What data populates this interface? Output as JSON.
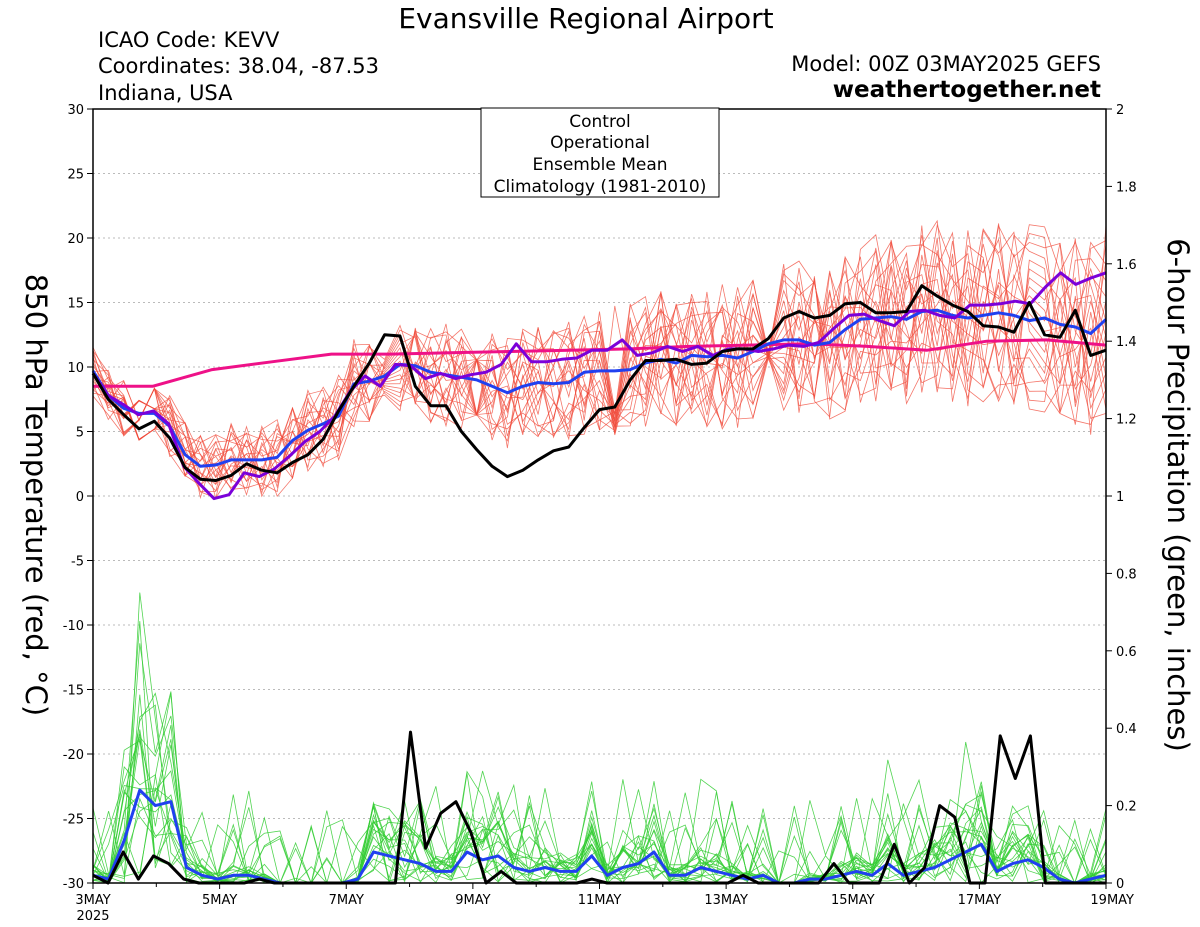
{
  "header": {
    "title": "Evansville Regional Airport",
    "icao": "ICAO Code: KEVV",
    "coords": "Coordinates: 38.04, -87.53",
    "region": "Indiana, USA",
    "model": "Model: 00Z 03MAY2025 GEFS",
    "site": "weathertogether.net"
  },
  "colors": {
    "control": "#000000",
    "operational": "#7b00d9",
    "ensemble_mean": "#2040f0",
    "climatology": "#ee1188",
    "members_temp": "#f04a3a",
    "members_precip": "#33cc33",
    "site": "#0aa0f0"
  },
  "chart_data": {
    "type": "line",
    "ylabel": "850 hPa Temperature (red, °C)",
    "y2label": "6-hour Precipitation (green, inches)",
    "ylim": [
      -30,
      30
    ],
    "y2lim": [
      0,
      2
    ],
    "yticks": [
      "30",
      "25",
      "20",
      "15",
      "10",
      "5",
      "0",
      "-5",
      "-10",
      "-15",
      "-20",
      "-25",
      "-30"
    ],
    "y2ticks": [
      "2",
      "1.8",
      "1.6",
      "1.4",
      "1.2",
      "1",
      "0.8",
      "0.6",
      "0.4",
      "0.2",
      "0"
    ],
    "x_range_days": [
      0,
      16
    ],
    "xticks": [
      {
        "day": 0,
        "label": "3MAY",
        "sub": "2025"
      },
      {
        "day": 2,
        "label": "5MAY"
      },
      {
        "day": 4,
        "label": "7MAY"
      },
      {
        "day": 6,
        "label": "9MAY"
      },
      {
        "day": 8,
        "label": "11MAY"
      },
      {
        "day": 10,
        "label": "13MAY"
      },
      {
        "day": 12,
        "label": "15MAY"
      },
      {
        "day": 14,
        "label": "17MAY"
      },
      {
        "day": 16,
        "label": "19MAY"
      }
    ],
    "legend": {
      "position": "top-center",
      "entries": [
        "Control",
        "Operational",
        "Ensemble Mean",
        "Climatology (1981-2010)"
      ]
    },
    "grid": "horizontal-dotted",
    "series": [
      {
        "key": "control_temp",
        "axis": "left",
        "values": [
          9.5,
          7.5,
          6.3,
          5.2,
          5.8,
          4.5,
          2.2,
          1.3,
          1.2,
          1.6,
          2.5,
          2.0,
          1.8,
          2.6,
          3.2,
          4.4,
          6.6,
          8.5,
          10.3,
          12.5,
          12.4,
          8.5,
          7.0,
          7.0,
          5.0,
          3.6,
          2.3,
          1.5,
          2.0,
          2.8,
          3.5,
          3.8,
          5.3,
          6.7,
          6.9,
          9.0,
          10.5,
          10.5,
          10.6,
          10.2,
          10.3,
          11.2,
          11.4,
          11.4,
          12.2,
          13.8,
          14.3,
          13.8,
          14.0,
          14.9,
          15.0,
          14.2,
          14.2,
          14.3,
          16.3,
          15.5,
          14.8,
          14.3,
          13.2,
          13.1,
          12.7,
          15.0,
          12.5,
          12.3,
          14.4,
          10.9,
          11.3
        ]
      },
      {
        "key": "operational_temp",
        "axis": "left",
        "values": [
          9.5,
          7.8,
          7.1,
          6.3,
          6.6,
          5.6,
          2.3,
          1.0,
          -0.2,
          0.1,
          1.8,
          1.5,
          2.1,
          3.1,
          4.2,
          5.0,
          6.2,
          8.1,
          9.3,
          8.5,
          10.2,
          10.1,
          9.1,
          9.5,
          9.1,
          9.4,
          9.6,
          10.2,
          11.8,
          10.4,
          10.4,
          10.6,
          10.7,
          11.3,
          11.3,
          12.1,
          10.9,
          11.1,
          11.6,
          11.2,
          11.6,
          10.9,
          11.4,
          11.4,
          11.2,
          11.4,
          11.7,
          11.6,
          11.9,
          13.0,
          14.0,
          14.1,
          13.6,
          13.2,
          14.3,
          14.4,
          14.0,
          13.8,
          14.8,
          14.8,
          14.9,
          15.1,
          14.9,
          16.2,
          17.3,
          16.4,
          16.9,
          17.3
        ]
      },
      {
        "key": "ensemble_mean_temp",
        "axis": "left",
        "values": [
          9.7,
          7.8,
          6.8,
          6.4,
          6.4,
          5.4,
          3.2,
          2.3,
          2.4,
          2.8,
          2.8,
          2.8,
          3.0,
          4.3,
          5.1,
          5.6,
          6.2,
          8.7,
          8.9,
          9.3,
          10.2,
          10.1,
          9.6,
          9.4,
          9.2,
          9.0,
          8.5,
          8.0,
          8.5,
          8.8,
          8.7,
          8.8,
          9.6,
          9.7,
          9.7,
          9.8,
          10.3,
          10.6,
          10.3,
          10.9,
          10.8,
          10.9,
          10.7,
          11.2,
          11.8,
          12.1,
          12.1,
          11.7,
          11.9,
          12.9,
          13.7,
          13.8,
          13.9,
          13.7,
          14.3,
          14.4,
          14.0,
          13.8,
          14.0,
          14.2,
          14.0,
          13.6,
          13.8,
          13.3,
          13.1,
          12.6,
          13.7
        ]
      },
      {
        "key": "climatology_temp",
        "axis": "left",
        "values": [
          8.5,
          8.5,
          9.8,
          10.4,
          11.0,
          11.0,
          11.1,
          11.2,
          11.3,
          11.4,
          11.6,
          11.7,
          11.8,
          11.6,
          11.3,
          12.0,
          12.1,
          11.7
        ]
      },
      {
        "key": "control_precip",
        "axis": "right",
        "values": [
          0.02,
          0,
          0.08,
          0.01,
          0.07,
          0.05,
          0.01,
          0,
          0,
          0,
          0,
          0.01,
          0,
          0,
          0,
          0,
          0,
          0,
          0,
          0,
          0.0,
          0.39,
          0.09,
          0.18,
          0.21,
          0.13,
          0,
          0.03,
          0,
          0,
          0,
          0,
          0,
          0.01,
          0,
          0,
          0,
          0,
          0,
          0,
          0,
          0,
          0,
          0.02,
          0,
          0,
          0,
          0,
          0,
          0.05,
          0,
          0,
          0,
          0.1,
          0,
          0.04,
          0.2,
          0.17,
          0,
          0,
          0.38,
          0.27,
          0.38,
          0,
          0,
          0,
          0,
          0
        ]
      },
      {
        "key": "ensemble_mean_precip",
        "axis": "right",
        "values": [
          0.02,
          0.01,
          0.11,
          0.24,
          0.2,
          0.21,
          0.04,
          0.02,
          0.01,
          0.02,
          0.02,
          0.01,
          0,
          0,
          0,
          0,
          0,
          0.01,
          0.08,
          0.07,
          0.06,
          0.05,
          0.03,
          0.03,
          0.08,
          0.06,
          0.07,
          0.04,
          0.03,
          0.04,
          0.03,
          0.03,
          0.07,
          0.02,
          0.04,
          0.05,
          0.08,
          0.02,
          0.02,
          0.04,
          0.03,
          0.02,
          0.01,
          0.02,
          0.0,
          0,
          0.01,
          0.01,
          0.02,
          0.03,
          0.02,
          0.05,
          0.02,
          0.03,
          0.04,
          0.06,
          0.08,
          0.1,
          0.03,
          0.05,
          0.06,
          0.04,
          0.01,
          0,
          0.01,
          0.02
        ]
      }
    ]
  }
}
